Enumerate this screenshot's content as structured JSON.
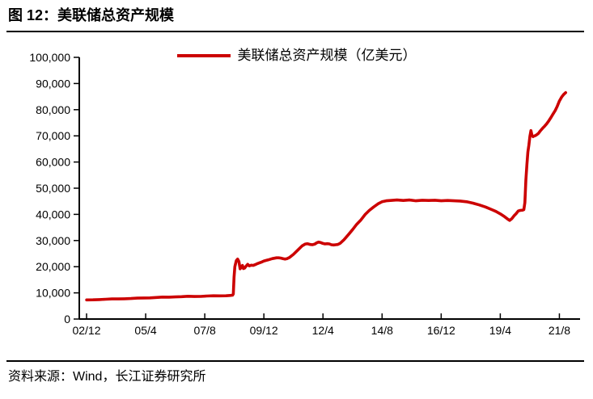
{
  "title": "图 12：美联储总资产规模",
  "source": "资料来源：Wind，长江证券研究所",
  "legend": {
    "label": "美联储总资产规模（亿美元）"
  },
  "colors": {
    "line": "#cc0000",
    "axis": "#000000",
    "text": "#000000",
    "background": "#ffffff"
  },
  "chart_data": {
    "type": "line",
    "title": "美联储总资产规模（亿美元）",
    "legend_position": "top-center",
    "grid": false,
    "ylim": [
      0,
      100000
    ],
    "y_ticks": [
      0,
      10000,
      20000,
      30000,
      40000,
      50000,
      60000,
      70000,
      80000,
      90000,
      100000
    ],
    "y_tick_labels": [
      "0",
      "10,000",
      "20,000",
      "30,000",
      "40,000",
      "50,000",
      "60,000",
      "70,000",
      "80,000",
      "90,000",
      "100,000"
    ],
    "x_tick_labels": [
      "02/12",
      "05/4",
      "07/8",
      "09/12",
      "12/4",
      "14/8",
      "16/12",
      "19/4",
      "21/8"
    ],
    "x_tick_dates": [
      2002.9167,
      2005.25,
      2007.5833,
      2009.9167,
      2012.25,
      2014.5833,
      2016.9167,
      2019.25,
      2021.5833
    ],
    "xlabel": "",
    "ylabel": "",
    "series": [
      {
        "name": "美联储总资产规模（亿美元）",
        "color": "#cc0000",
        "points": [
          [
            2002.92,
            7300
          ],
          [
            2003.17,
            7350
          ],
          [
            2003.42,
            7450
          ],
          [
            2003.67,
            7550
          ],
          [
            2003.92,
            7700
          ],
          [
            2004.17,
            7700
          ],
          [
            2004.42,
            7750
          ],
          [
            2004.67,
            7850
          ],
          [
            2004.92,
            8000
          ],
          [
            2005.17,
            8050
          ],
          [
            2005.42,
            8100
          ],
          [
            2005.67,
            8250
          ],
          [
            2005.92,
            8400
          ],
          [
            2006.17,
            8350
          ],
          [
            2006.42,
            8450
          ],
          [
            2006.67,
            8550
          ],
          [
            2006.92,
            8700
          ],
          [
            2007.17,
            8600
          ],
          [
            2007.42,
            8650
          ],
          [
            2007.67,
            8800
          ],
          [
            2007.92,
            8900
          ],
          [
            2008.17,
            8850
          ],
          [
            2008.42,
            8900
          ],
          [
            2008.58,
            9000
          ],
          [
            2008.68,
            9100
          ],
          [
            2008.71,
            9600
          ],
          [
            2008.74,
            16000
          ],
          [
            2008.77,
            20000
          ],
          [
            2008.83,
            22300
          ],
          [
            2008.88,
            22900
          ],
          [
            2008.93,
            22000
          ],
          [
            2008.98,
            19200
          ],
          [
            2009.03,
            19900
          ],
          [
            2009.07,
            20500
          ],
          [
            2009.11,
            19300
          ],
          [
            2009.16,
            19500
          ],
          [
            2009.22,
            20300
          ],
          [
            2009.28,
            20900
          ],
          [
            2009.34,
            20300
          ],
          [
            2009.42,
            20600
          ],
          [
            2009.5,
            20500
          ],
          [
            2009.58,
            20800
          ],
          [
            2009.67,
            21200
          ],
          [
            2009.75,
            21500
          ],
          [
            2009.83,
            21800
          ],
          [
            2009.92,
            22200
          ],
          [
            2010.08,
            22600
          ],
          [
            2010.25,
            23100
          ],
          [
            2010.42,
            23400
          ],
          [
            2010.5,
            23400
          ],
          [
            2010.58,
            23300
          ],
          [
            2010.67,
            23100
          ],
          [
            2010.75,
            22900
          ],
          [
            2010.83,
            23100
          ],
          [
            2010.92,
            23500
          ],
          [
            2011.08,
            24700
          ],
          [
            2011.25,
            26300
          ],
          [
            2011.42,
            27900
          ],
          [
            2011.54,
            28600
          ],
          [
            2011.63,
            28800
          ],
          [
            2011.75,
            28500
          ],
          [
            2011.83,
            28400
          ],
          [
            2011.92,
            28600
          ],
          [
            2012.0,
            29100
          ],
          [
            2012.08,
            29400
          ],
          [
            2012.17,
            29200
          ],
          [
            2012.25,
            28900
          ],
          [
            2012.33,
            28700
          ],
          [
            2012.42,
            28800
          ],
          [
            2012.5,
            28700
          ],
          [
            2012.58,
            28400
          ],
          [
            2012.67,
            28300
          ],
          [
            2012.75,
            28400
          ],
          [
            2012.83,
            28500
          ],
          [
            2012.92,
            28900
          ],
          [
            2013.08,
            30300
          ],
          [
            2013.25,
            32200
          ],
          [
            2013.42,
            34200
          ],
          [
            2013.58,
            36200
          ],
          [
            2013.75,
            37900
          ],
          [
            2013.92,
            40000
          ],
          [
            2014.08,
            41500
          ],
          [
            2014.25,
            42800
          ],
          [
            2014.42,
            44000
          ],
          [
            2014.58,
            44800
          ],
          [
            2014.75,
            45200
          ],
          [
            2014.92,
            45300
          ],
          [
            2015.17,
            45500
          ],
          [
            2015.42,
            45300
          ],
          [
            2015.67,
            45500
          ],
          [
            2015.92,
            45200
          ],
          [
            2016.17,
            45400
          ],
          [
            2016.42,
            45300
          ],
          [
            2016.67,
            45400
          ],
          [
            2016.92,
            45200
          ],
          [
            2017.17,
            45300
          ],
          [
            2017.42,
            45200
          ],
          [
            2017.67,
            45100
          ],
          [
            2017.92,
            44800
          ],
          [
            2018.17,
            44300
          ],
          [
            2018.42,
            43600
          ],
          [
            2018.67,
            42800
          ],
          [
            2018.92,
            41800
          ],
          [
            2019.08,
            41100
          ],
          [
            2019.25,
            40200
          ],
          [
            2019.42,
            39100
          ],
          [
            2019.54,
            38200
          ],
          [
            2019.62,
            37700
          ],
          [
            2019.71,
            38400
          ],
          [
            2019.79,
            39400
          ],
          [
            2019.88,
            40300
          ],
          [
            2019.96,
            41300
          ],
          [
            2020.04,
            41500
          ],
          [
            2020.13,
            41600
          ],
          [
            2020.18,
            41800
          ],
          [
            2020.22,
            44500
          ],
          [
            2020.26,
            53000
          ],
          [
            2020.3,
            59000
          ],
          [
            2020.34,
            63800
          ],
          [
            2020.38,
            66600
          ],
          [
            2020.42,
            69800
          ],
          [
            2020.46,
            72000
          ],
          [
            2020.5,
            70300
          ],
          [
            2020.54,
            69700
          ],
          [
            2020.58,
            69900
          ],
          [
            2020.63,
            70100
          ],
          [
            2020.67,
            70300
          ],
          [
            2020.75,
            70900
          ],
          [
            2020.83,
            71900
          ],
          [
            2020.92,
            72900
          ],
          [
            2021.0,
            73700
          ],
          [
            2021.08,
            74600
          ],
          [
            2021.17,
            75800
          ],
          [
            2021.25,
            77000
          ],
          [
            2021.33,
            78300
          ],
          [
            2021.42,
            79700
          ],
          [
            2021.5,
            81300
          ],
          [
            2021.58,
            83200
          ],
          [
            2021.67,
            84800
          ],
          [
            2021.75,
            85800
          ],
          [
            2021.83,
            86500
          ]
        ]
      }
    ]
  }
}
